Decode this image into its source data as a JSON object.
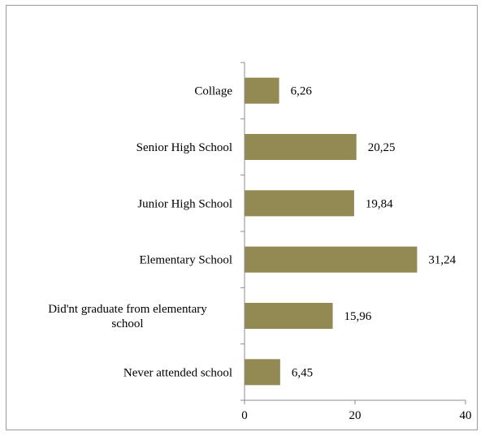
{
  "chart_data": {
    "type": "bar",
    "orientation": "horizontal",
    "categories": [
      "Collage",
      "Senior High School",
      "Junior High School",
      "Elementary School",
      "Did'nt graduate from elementary school",
      "Never attended school"
    ],
    "category_lines": [
      [
        "Collage"
      ],
      [
        "Senior High School"
      ],
      [
        "Junior High School"
      ],
      [
        "Elementary School"
      ],
      [
        "Did'nt graduate from elementary",
        "school"
      ],
      [
        "Never attended school"
      ]
    ],
    "values": [
      6.26,
      20.25,
      19.84,
      31.24,
      15.96,
      6.45
    ],
    "data_labels": [
      "6,26",
      "20,25",
      "19,84",
      "31,24",
      "15,96",
      "6,45"
    ],
    "xlim": [
      0,
      40
    ],
    "x_ticks": [
      0,
      20,
      40
    ],
    "x_tick_labels": [
      "0",
      "20",
      "40"
    ],
    "bar_color": "#938953",
    "grid": false,
    "title": "",
    "xlabel": "",
    "ylabel": ""
  }
}
